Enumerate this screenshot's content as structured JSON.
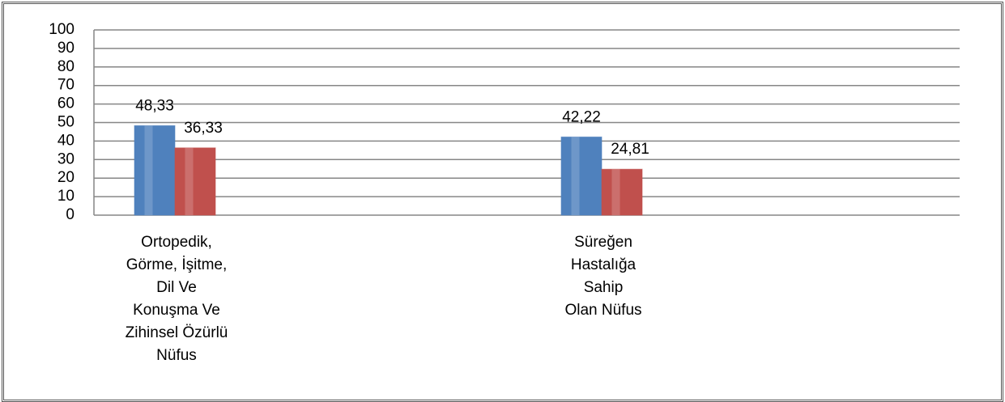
{
  "chart_data": {
    "type": "bar",
    "categories": [
      "Ortopedik,\nGörme, İşitme,\nDil Ve\nKonuşma Ve\nZihinsel Özürlü\nNüfus",
      "Süreğen\nHastalığa\nSahip\nOlan Nüfus"
    ],
    "series": [
      {
        "color": "#4f81bd",
        "values": [
          48.33,
          42.22
        ],
        "value_labels": [
          "48,33",
          "42,22"
        ]
      },
      {
        "color": "#c0504d",
        "values": [
          36.33,
          24.81
        ],
        "value_labels": [
          "36,33",
          "24,81"
        ]
      }
    ],
    "ylim": [
      0,
      100
    ],
    "yticks": [
      0,
      10,
      20,
      30,
      40,
      50,
      60,
      70,
      80,
      90,
      100
    ],
    "grid": true
  }
}
